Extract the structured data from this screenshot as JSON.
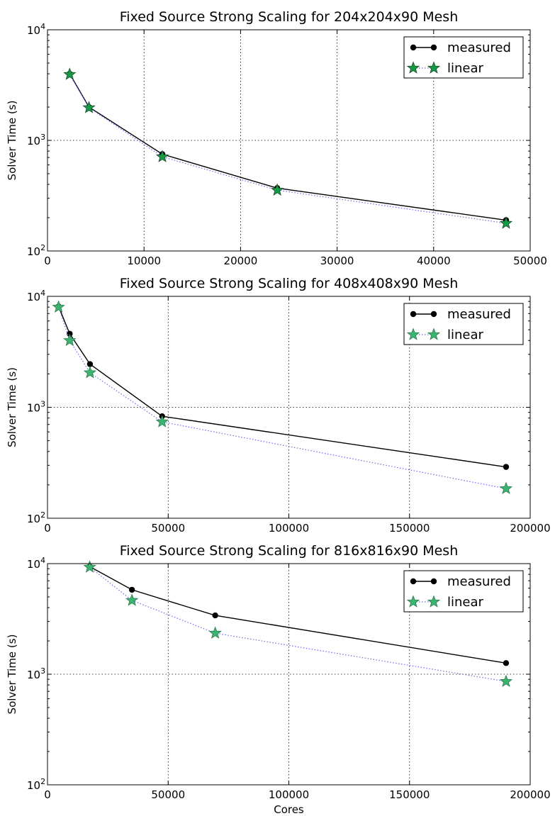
{
  "chart_data": [
    {
      "type": "line",
      "title": "Fixed Source Strong Scaling for 204x204x90 Mesh",
      "xlabel": "",
      "ylabel": "Solver Time (s)",
      "xlim": [
        0,
        50000
      ],
      "ylim": [
        100,
        10000
      ],
      "yscale": "log",
      "grid": true,
      "legend_position": "top-right",
      "xticks": [
        0,
        10000,
        20000,
        30000,
        40000,
        50000
      ],
      "xtick_labels": [
        "0",
        "10000",
        "20000",
        "30000",
        "40000",
        "50000"
      ],
      "yticks": [
        100,
        1000,
        10000
      ],
      "ytick_labels": [
        {
          "base": "10",
          "exp": "2"
        },
        {
          "base": "10",
          "exp": "3"
        },
        {
          "base": "10",
          "exp": "4"
        }
      ],
      "series": [
        {
          "name": "measured",
          "style": "measured",
          "color": "#000000",
          "x": [
            2300,
            4300,
            11900,
            23800,
            47500
          ],
          "y": [
            4000,
            2000,
            750,
            370,
            190
          ]
        },
        {
          "name": "linear",
          "style": "linear",
          "color": "#139a43",
          "edge": "#1f4a2b",
          "line_color": "#6b6bf0",
          "x": [
            2300,
            4300,
            11900,
            23800,
            47500
          ],
          "y": [
            3950,
            1975,
            711,
            355,
            178
          ]
        }
      ]
    },
    {
      "type": "line",
      "title": "Fixed Source Strong Scaling for 408x408x90 Mesh",
      "xlabel": "",
      "ylabel": "Solver Time (s)",
      "xlim": [
        0,
        200000
      ],
      "ylim": [
        100,
        10000
      ],
      "yscale": "log",
      "grid": true,
      "legend_position": "top-right",
      "xticks": [
        0,
        50000,
        100000,
        150000,
        200000
      ],
      "xtick_labels": [
        "0",
        "50000",
        "100000",
        "150000",
        "200000"
      ],
      "yticks": [
        100,
        1000,
        10000
      ],
      "ytick_labels": [
        {
          "base": "10",
          "exp": "2"
        },
        {
          "base": "10",
          "exp": "3"
        },
        {
          "base": "10",
          "exp": "4"
        }
      ],
      "series": [
        {
          "name": "measured",
          "style": "measured",
          "color": "#000000",
          "x": [
            4600,
            9200,
            17600,
            47500,
            190000
          ],
          "y": [
            8100,
            4600,
            2450,
            830,
            290
          ]
        },
        {
          "name": "linear",
          "style": "linear",
          "color": "#3cb371",
          "edge": "#2e7d4f",
          "line_color": "#6b6bf0",
          "x": [
            4600,
            9200,
            17600,
            47500,
            190000
          ],
          "y": [
            8000,
            4000,
            2050,
            740,
            185
          ]
        }
      ]
    },
    {
      "type": "line",
      "title": "Fixed Source Strong Scaling for 816x816x90 Mesh",
      "xlabel": "Cores",
      "ylabel": "Solver Time (s)",
      "xlim": [
        0,
        200000
      ],
      "ylim": [
        100,
        10000
      ],
      "yscale": "log",
      "grid": true,
      "legend_position": "top-right",
      "xticks": [
        0,
        50000,
        100000,
        150000,
        200000
      ],
      "xtick_labels": [
        "0",
        "50000",
        "100000",
        "150000",
        "200000"
      ],
      "yticks": [
        100,
        1000,
        10000
      ],
      "ytick_labels": [
        {
          "base": "10",
          "exp": "2"
        },
        {
          "base": "10",
          "exp": "3"
        },
        {
          "base": "10",
          "exp": "4"
        }
      ],
      "series": [
        {
          "name": "measured",
          "style": "measured",
          "color": "#000000",
          "x": [
            17500,
            35000,
            69500,
            190000
          ],
          "y": [
            9400,
            5800,
            3400,
            1260
          ]
        },
        {
          "name": "linear",
          "style": "linear",
          "color": "#3cb371",
          "edge": "#2e7d4f",
          "line_color": "#6b6bf0",
          "x": [
            17500,
            35000,
            69500,
            190000
          ],
          "y": [
            9300,
            4650,
            2350,
            860
          ]
        }
      ]
    }
  ]
}
